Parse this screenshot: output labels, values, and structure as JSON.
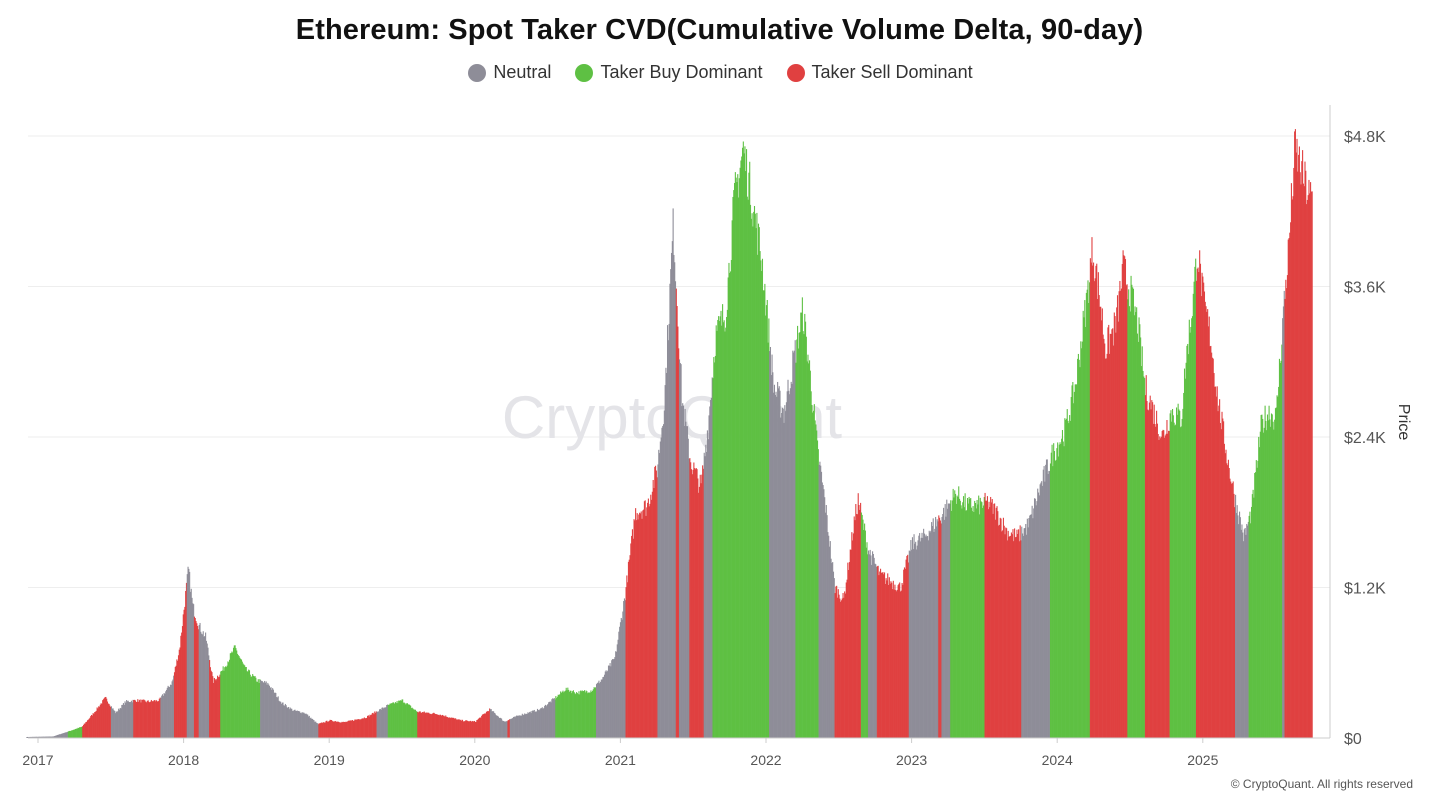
{
  "title": "Ethereum: Spot Taker CVD(Cumulative Volume Delta, 90-day)",
  "legend": {
    "neutral": "Neutral",
    "buy": "Taker Buy Dominant",
    "sell": "Taker Sell Dominant"
  },
  "colors": {
    "neutral": "#8e8d98",
    "buy": "#5ec043",
    "sell": "#e04040",
    "grid": "#eeeeee"
  },
  "watermark": "CryptoQuant",
  "copyright": "© CryptoQuant. All rights reserved",
  "chart_data": {
    "type": "bar",
    "title": "Ethereum: Spot Taker CVD(Cumulative Volume Delta, 90-day)",
    "ylabel": "Price",
    "y_axis_side": "right",
    "ylim": [
      0,
      4800
    ],
    "y_ticks": [
      "$0",
      "$1.2K",
      "$2.4K",
      "$3.6K",
      "$4.8K"
    ],
    "y_tick_values": [
      0,
      1200,
      2400,
      3600,
      4800
    ],
    "x_ticks": [
      "2017",
      "2018",
      "2019",
      "2020",
      "2021",
      "2022",
      "2023",
      "2024",
      "2025"
    ],
    "x_tick_values": [
      2017,
      2018,
      2019,
      2020,
      2021,
      2022,
      2023,
      2024,
      2025
    ],
    "xlim": [
      2016.92,
      2025.75
    ],
    "grid": "horizontal",
    "legend_position": "top-center",
    "price_anchors": [
      [
        2016.92,
        8
      ],
      [
        2017.1,
        12
      ],
      [
        2017.2,
        50
      ],
      [
        2017.3,
        90
      ],
      [
        2017.38,
        200
      ],
      [
        2017.46,
        320
      ],
      [
        2017.53,
        200
      ],
      [
        2017.6,
        290
      ],
      [
        2017.67,
        300
      ],
      [
        2017.75,
        290
      ],
      [
        2017.83,
        300
      ],
      [
        2017.92,
        450
      ],
      [
        2017.97,
        720
      ],
      [
        2018.03,
        1350
      ],
      [
        2018.06,
        1050
      ],
      [
        2018.1,
        900
      ],
      [
        2018.15,
        800
      ],
      [
        2018.2,
        450
      ],
      [
        2018.27,
        550
      ],
      [
        2018.35,
        720
      ],
      [
        2018.42,
        550
      ],
      [
        2018.5,
        460
      ],
      [
        2018.58,
        430
      ],
      [
        2018.67,
        280
      ],
      [
        2018.75,
        220
      ],
      [
        2018.83,
        200
      ],
      [
        2018.92,
        110
      ],
      [
        2019.0,
        140
      ],
      [
        2019.1,
        125
      ],
      [
        2019.25,
        165
      ],
      [
        2019.4,
        260
      ],
      [
        2019.5,
        300
      ],
      [
        2019.6,
        210
      ],
      [
        2019.75,
        190
      ],
      [
        2019.9,
        140
      ],
      [
        2020.0,
        130
      ],
      [
        2020.1,
        230
      ],
      [
        2020.2,
        130
      ],
      [
        2020.3,
        180
      ],
      [
        2020.45,
        230
      ],
      [
        2020.55,
        320
      ],
      [
        2020.62,
        390
      ],
      [
        2020.7,
        360
      ],
      [
        2020.8,
        380
      ],
      [
        2020.87,
        470
      ],
      [
        2020.96,
        640
      ],
      [
        2021.03,
        1150
      ],
      [
        2021.1,
        1800
      ],
      [
        2021.18,
        1850
      ],
      [
        2021.25,
        2150
      ],
      [
        2021.3,
        2700
      ],
      [
        2021.36,
        4100
      ],
      [
        2021.42,
        2700
      ],
      [
        2021.48,
        2200
      ],
      [
        2021.55,
        2000
      ],
      [
        2021.6,
        2500
      ],
      [
        2021.65,
        3200
      ],
      [
        2021.72,
        3400
      ],
      [
        2021.78,
        4300
      ],
      [
        2021.84,
        4700
      ],
      [
        2021.9,
        4300
      ],
      [
        2021.97,
        3800
      ],
      [
        2022.05,
        2800
      ],
      [
        2022.12,
        2600
      ],
      [
        2022.2,
        3100
      ],
      [
        2022.25,
        3400
      ],
      [
        2022.3,
        2900
      ],
      [
        2022.35,
        2300
      ],
      [
        2022.4,
        1900
      ],
      [
        2022.47,
        1200
      ],
      [
        2022.53,
        1100
      ],
      [
        2022.6,
        1700
      ],
      [
        2022.63,
        1900
      ],
      [
        2022.7,
        1500
      ],
      [
        2022.78,
        1300
      ],
      [
        2022.85,
        1250
      ],
      [
        2022.92,
        1200
      ],
      [
        2023.0,
        1550
      ],
      [
        2023.08,
        1600
      ],
      [
        2023.15,
        1700
      ],
      [
        2023.22,
        1800
      ],
      [
        2023.3,
        1950
      ],
      [
        2023.38,
        1850
      ],
      [
        2023.45,
        1850
      ],
      [
        2023.52,
        1880
      ],
      [
        2023.58,
        1800
      ],
      [
        2023.65,
        1650
      ],
      [
        2023.72,
        1600
      ],
      [
        2023.8,
        1700
      ],
      [
        2023.88,
        2000
      ],
      [
        2023.96,
        2250
      ],
      [
        2024.05,
        2450
      ],
      [
        2024.12,
        2800
      ],
      [
        2024.2,
        3500
      ],
      [
        2024.24,
        3900
      ],
      [
        2024.29,
        3500
      ],
      [
        2024.33,
        3100
      ],
      [
        2024.4,
        3300
      ],
      [
        2024.45,
        3750
      ],
      [
        2024.5,
        3550
      ],
      [
        2024.55,
        3300
      ],
      [
        2024.6,
        2800
      ],
      [
        2024.66,
        2600
      ],
      [
        2024.72,
        2400
      ],
      [
        2024.78,
        2600
      ],
      [
        2024.85,
        2550
      ],
      [
        2024.88,
        3000
      ],
      [
        2024.93,
        3500
      ],
      [
        2024.96,
        3900
      ],
      [
        2025.0,
        3500
      ],
      [
        2025.05,
        3200
      ],
      [
        2025.1,
        2700
      ],
      [
        2025.17,
        2200
      ],
      [
        2025.22,
        1900
      ],
      [
        2025.28,
        1600
      ],
      [
        2025.33,
        1800
      ],
      [
        2025.4,
        2500
      ],
      [
        2025.45,
        2600
      ],
      [
        2025.5,
        2550
      ],
      [
        2025.55,
        3400
      ],
      [
        2025.58,
        3800
      ],
      [
        2025.63,
        4700
      ],
      [
        2025.68,
        4500
      ],
      [
        2025.73,
        4300
      ]
    ],
    "regimes": [
      {
        "from": 2016.92,
        "to": 2017.2,
        "type": "neutral"
      },
      {
        "from": 2017.2,
        "to": 2017.3,
        "type": "buy"
      },
      {
        "from": 2017.3,
        "to": 2017.5,
        "type": "sell"
      },
      {
        "from": 2017.5,
        "to": 2017.65,
        "type": "neutral"
      },
      {
        "from": 2017.65,
        "to": 2017.84,
        "type": "sell"
      },
      {
        "from": 2017.84,
        "to": 2017.93,
        "type": "neutral"
      },
      {
        "from": 2017.93,
        "to": 2018.02,
        "type": "sell"
      },
      {
        "from": 2018.02,
        "to": 2018.07,
        "type": "neutral"
      },
      {
        "from": 2018.07,
        "to": 2018.1,
        "type": "sell"
      },
      {
        "from": 2018.1,
        "to": 2018.17,
        "type": "neutral"
      },
      {
        "from": 2018.17,
        "to": 2018.25,
        "type": "sell"
      },
      {
        "from": 2018.25,
        "to": 2018.52,
        "type": "buy"
      },
      {
        "from": 2018.52,
        "to": 2018.92,
        "type": "neutral"
      },
      {
        "from": 2018.92,
        "to": 2019.32,
        "type": "sell"
      },
      {
        "from": 2019.32,
        "to": 2019.4,
        "type": "neutral"
      },
      {
        "from": 2019.4,
        "to": 2019.6,
        "type": "buy"
      },
      {
        "from": 2019.6,
        "to": 2020.1,
        "type": "sell"
      },
      {
        "from": 2020.1,
        "to": 2020.22,
        "type": "neutral"
      },
      {
        "from": 2020.22,
        "to": 2020.24,
        "type": "sell"
      },
      {
        "from": 2020.24,
        "to": 2020.55,
        "type": "neutral"
      },
      {
        "from": 2020.55,
        "to": 2020.83,
        "type": "buy"
      },
      {
        "from": 2020.83,
        "to": 2021.03,
        "type": "neutral"
      },
      {
        "from": 2021.03,
        "to": 2021.25,
        "type": "sell"
      },
      {
        "from": 2021.25,
        "to": 2021.38,
        "type": "neutral"
      },
      {
        "from": 2021.38,
        "to": 2021.4,
        "type": "sell"
      },
      {
        "from": 2021.4,
        "to": 2021.47,
        "type": "neutral"
      },
      {
        "from": 2021.47,
        "to": 2021.57,
        "type": "sell"
      },
      {
        "from": 2021.57,
        "to": 2021.63,
        "type": "neutral"
      },
      {
        "from": 2021.63,
        "to": 2022.02,
        "type": "buy"
      },
      {
        "from": 2022.02,
        "to": 2022.2,
        "type": "neutral"
      },
      {
        "from": 2022.2,
        "to": 2022.36,
        "type": "buy"
      },
      {
        "from": 2022.36,
        "to": 2022.47,
        "type": "neutral"
      },
      {
        "from": 2022.47,
        "to": 2022.65,
        "type": "sell"
      },
      {
        "from": 2022.65,
        "to": 2022.7,
        "type": "buy"
      },
      {
        "from": 2022.7,
        "to": 2022.76,
        "type": "neutral"
      },
      {
        "from": 2022.76,
        "to": 2022.98,
        "type": "sell"
      },
      {
        "from": 2022.98,
        "to": 2023.18,
        "type": "neutral"
      },
      {
        "from": 2023.18,
        "to": 2023.2,
        "type": "sell"
      },
      {
        "from": 2023.2,
        "to": 2023.26,
        "type": "neutral"
      },
      {
        "from": 2023.26,
        "to": 2023.5,
        "type": "buy"
      },
      {
        "from": 2023.5,
        "to": 2023.75,
        "type": "sell"
      },
      {
        "from": 2023.75,
        "to": 2023.95,
        "type": "neutral"
      },
      {
        "from": 2023.95,
        "to": 2024.22,
        "type": "buy"
      },
      {
        "from": 2024.22,
        "to": 2024.48,
        "type": "sell"
      },
      {
        "from": 2024.48,
        "to": 2024.6,
        "type": "buy"
      },
      {
        "from": 2024.6,
        "to": 2024.77,
        "type": "sell"
      },
      {
        "from": 2024.77,
        "to": 2024.85,
        "type": "buy"
      },
      {
        "from": 2024.85,
        "to": 2024.95,
        "type": "buy"
      },
      {
        "from": 2024.95,
        "to": 2025.22,
        "type": "sell"
      },
      {
        "from": 2025.22,
        "to": 2025.31,
        "type": "neutral"
      },
      {
        "from": 2025.31,
        "to": 2025.54,
        "type": "buy"
      },
      {
        "from": 2025.54,
        "to": 2025.56,
        "type": "neutral"
      },
      {
        "from": 2025.56,
        "to": 2025.75,
        "type": "sell"
      }
    ]
  }
}
